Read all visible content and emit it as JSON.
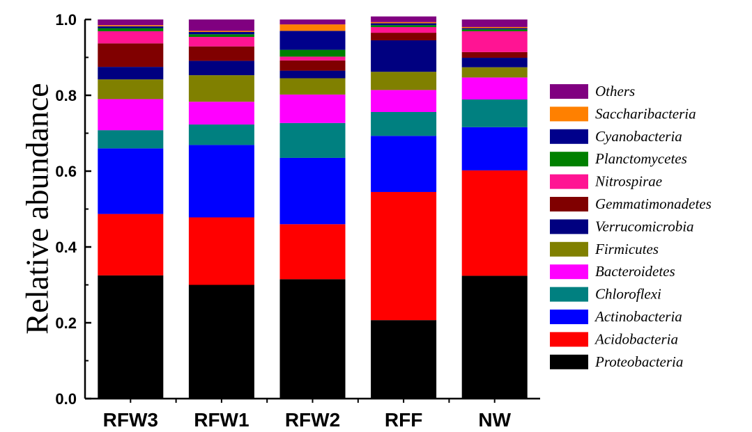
{
  "chart_data": {
    "type": "bar",
    "stacked": true,
    "title": "",
    "xlabel": "",
    "ylabel": "Relative abundance",
    "ylim": [
      0,
      1.0
    ],
    "yticks": [
      "0.0",
      "0.2",
      "0.4",
      "0.6",
      "0.8",
      "1.0"
    ],
    "grid": false,
    "legend_position": "right",
    "categories": [
      "RFW3",
      "RFW1",
      "RFW2",
      "RFF",
      "NW"
    ],
    "series": [
      {
        "name": "Proteobacteria",
        "color": "#000000",
        "values": [
          0.325,
          0.3,
          0.315,
          0.207,
          0.324
        ]
      },
      {
        "name": "Acidobacteria",
        "color": "#ff0000",
        "values": [
          0.162,
          0.178,
          0.145,
          0.338,
          0.278
        ]
      },
      {
        "name": "Actinobacteria",
        "color": "#0000ff",
        "values": [
          0.173,
          0.191,
          0.175,
          0.148,
          0.114
        ]
      },
      {
        "name": "Chloroflexi",
        "color": "#008080",
        "values": [
          0.048,
          0.054,
          0.092,
          0.063,
          0.073
        ]
      },
      {
        "name": "Bacteroidetes",
        "color": "#ff00ff",
        "values": [
          0.082,
          0.06,
          0.075,
          0.058,
          0.058
        ]
      },
      {
        "name": "Firmicutes",
        "color": "#808000",
        "values": [
          0.052,
          0.07,
          0.043,
          0.048,
          0.027
        ]
      },
      {
        "name": "Verrucomicrobia",
        "color": "#000080",
        "values": [
          0.033,
          0.038,
          0.02,
          0.083,
          0.025
        ]
      },
      {
        "name": "Gemmatimonadetes",
        "color": "#800000",
        "values": [
          0.062,
          0.038,
          0.027,
          0.02,
          0.015
        ]
      },
      {
        "name": "Nitrospirae",
        "color": "#ff1493",
        "values": [
          0.032,
          0.025,
          0.01,
          0.015,
          0.055
        ]
      },
      {
        "name": "Planctomycetes",
        "color": "#008000",
        "values": [
          0.008,
          0.007,
          0.018,
          0.005,
          0.005
        ]
      },
      {
        "name": "Cyanobacteria",
        "color": "#00008b",
        "values": [
          0.005,
          0.006,
          0.05,
          0.005,
          0.003
        ]
      },
      {
        "name": "Saccharibacteria",
        "color": "#ff8000",
        "values": [
          0.003,
          0.003,
          0.017,
          0.003,
          0.003
        ]
      },
      {
        "name": "Others",
        "color": "#800080",
        "values": [
          0.015,
          0.03,
          0.013,
          0.015,
          0.02
        ]
      }
    ]
  }
}
